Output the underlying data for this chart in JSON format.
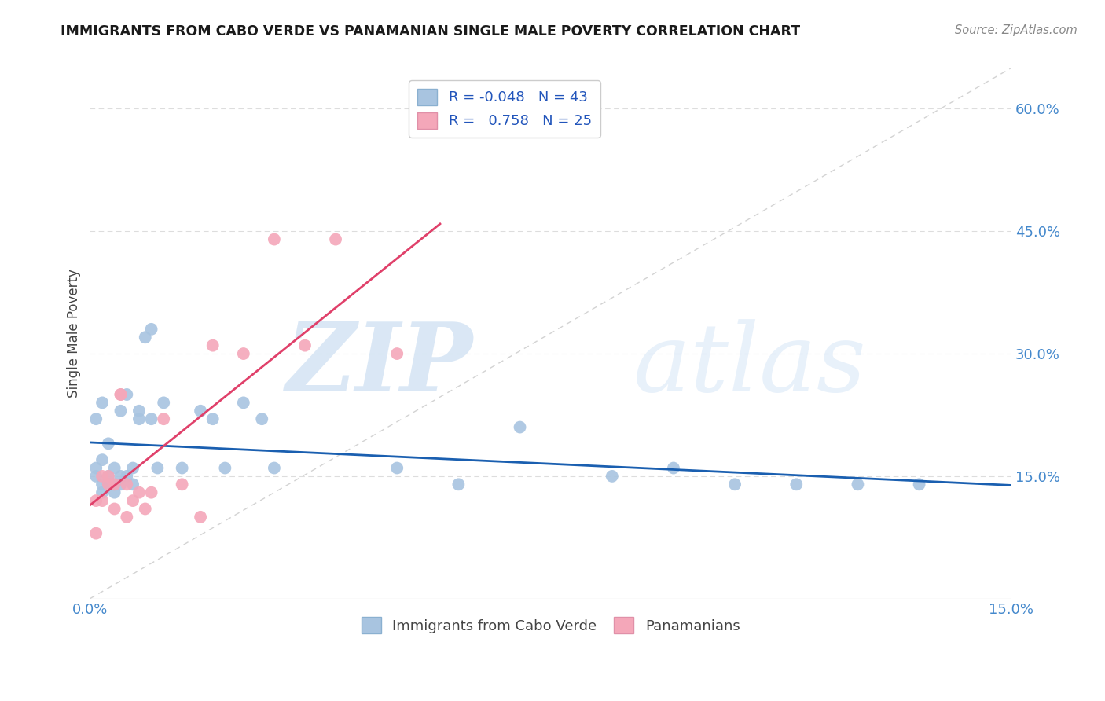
{
  "title": "IMMIGRANTS FROM CABO VERDE VS PANAMANIAN SINGLE MALE POVERTY CORRELATION CHART",
  "source": "Source: ZipAtlas.com",
  "ylabel": "Single Male Poverty",
  "xlim": [
    0.0,
    0.15
  ],
  "ylim": [
    0.0,
    0.65
  ],
  "yticks_right": [
    0.15,
    0.3,
    0.45,
    0.6
  ],
  "ytick_labels_right": [
    "15.0%",
    "30.0%",
    "45.0%",
    "60.0%"
  ],
  "cabo_verde_color": "#a8c4e0",
  "panama_color": "#f4a7b9",
  "cabo_verde_line_color": "#1a5fb0",
  "panama_line_color": "#e0406a",
  "R_cabo": -0.048,
  "N_cabo": 43,
  "R_panama": 0.758,
  "N_panama": 25,
  "cabo_verde_label": "Immigrants from Cabo Verde",
  "panama_label": "Panamanians",
  "cabo_verde_x": [
    0.001,
    0.001,
    0.001,
    0.002,
    0.002,
    0.002,
    0.002,
    0.003,
    0.003,
    0.003,
    0.004,
    0.004,
    0.004,
    0.005,
    0.005,
    0.005,
    0.006,
    0.006,
    0.007,
    0.007,
    0.008,
    0.008,
    0.009,
    0.01,
    0.01,
    0.011,
    0.012,
    0.015,
    0.018,
    0.02,
    0.022,
    0.025,
    0.028,
    0.03,
    0.05,
    0.06,
    0.07,
    0.085,
    0.095,
    0.105,
    0.115,
    0.125,
    0.135
  ],
  "cabo_verde_y": [
    0.16,
    0.22,
    0.15,
    0.17,
    0.24,
    0.14,
    0.13,
    0.19,
    0.15,
    0.14,
    0.16,
    0.14,
    0.13,
    0.23,
    0.15,
    0.14,
    0.25,
    0.15,
    0.14,
    0.16,
    0.23,
    0.22,
    0.32,
    0.33,
    0.22,
    0.16,
    0.24,
    0.16,
    0.23,
    0.22,
    0.16,
    0.24,
    0.22,
    0.16,
    0.16,
    0.14,
    0.21,
    0.15,
    0.16,
    0.14,
    0.14,
    0.14,
    0.14
  ],
  "panama_x": [
    0.001,
    0.001,
    0.002,
    0.002,
    0.003,
    0.003,
    0.004,
    0.004,
    0.005,
    0.005,
    0.006,
    0.006,
    0.007,
    0.008,
    0.009,
    0.01,
    0.012,
    0.015,
    0.018,
    0.02,
    0.025,
    0.03,
    0.035,
    0.04,
    0.05
  ],
  "panama_y": [
    0.12,
    0.08,
    0.15,
    0.12,
    0.15,
    0.14,
    0.14,
    0.11,
    0.25,
    0.25,
    0.14,
    0.1,
    0.12,
    0.13,
    0.11,
    0.13,
    0.22,
    0.14,
    0.1,
    0.31,
    0.3,
    0.44,
    0.31,
    0.44,
    0.3
  ],
  "watermark_zip": "ZIP",
  "watermark_atlas": "atlas",
  "background_color": "#ffffff",
  "grid_color": "#dddddd",
  "legend_R_color": "#2255bb",
  "legend_N_color": "#2255bb"
}
